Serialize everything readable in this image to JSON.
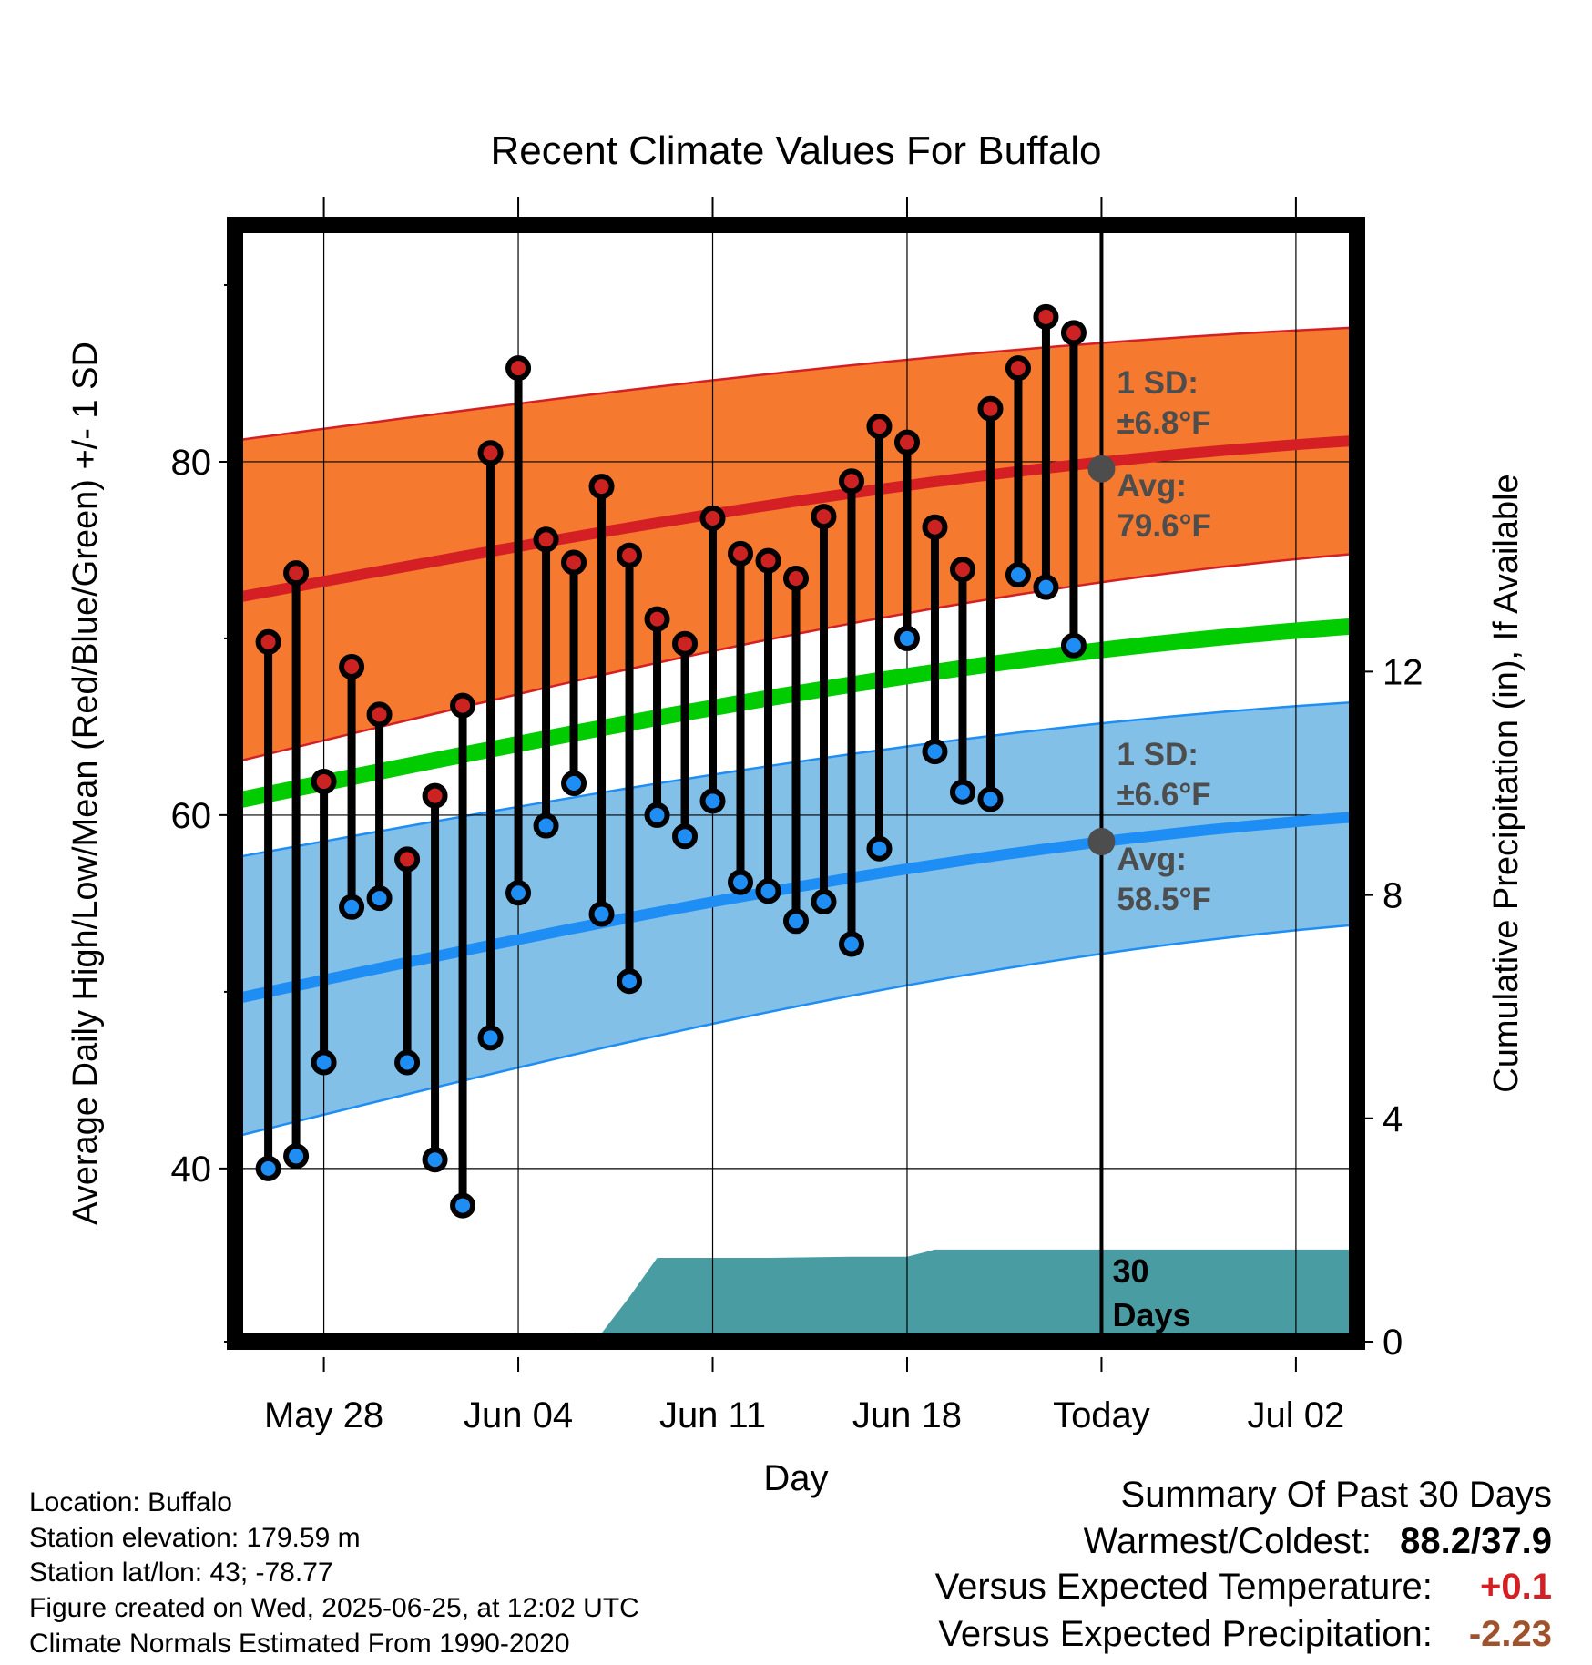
{
  "chart_data": {
    "type": "line",
    "title": "Recent Climate Values For Buffalo",
    "xlabel": "Day",
    "ylabel": "Average Daily High/Low/Mean (Red/Blue/Green) +/- 1 SD",
    "y2label": "Cumulative Precipitation (in), If Available",
    "x_tick_labels": [
      "May 28",
      "Jun 04",
      "Jun 11",
      "Jun 18",
      "Today",
      "Jul 02"
    ],
    "x_tick_days": [
      3,
      10,
      17,
      24,
      31,
      38
    ],
    "xlim": [
      -0.2,
      40.2
    ],
    "ylim": [
      30.2,
      93.4
    ],
    "y_ticks": [
      40,
      60,
      80
    ],
    "y2lim": [
      0,
      20
    ],
    "y2_ticks": [
      0,
      4,
      8,
      12
    ],
    "today_day": 31,
    "today_marker_label": "30\nDays",
    "days": [
      1,
      2,
      3,
      4,
      5,
      6,
      7,
      8,
      9,
      10,
      11,
      12,
      13,
      14,
      15,
      16,
      17,
      18,
      19,
      20,
      21,
      22,
      23,
      24,
      25,
      26,
      27,
      28,
      29,
      30
    ],
    "series": [
      {
        "name": "Daily High",
        "values": [
          69.8,
          73.7,
          61.9,
          68.4,
          65.7,
          57.5,
          61.1,
          66.2,
          80.5,
          85.3,
          75.6,
          74.3,
          78.6,
          74.7,
          71.1,
          69.7,
          76.8,
          74.8,
          74.4,
          73.4,
          76.9,
          78.9,
          82.0,
          81.1,
          76.3,
          73.9,
          83.0,
          85.3,
          88.2,
          87.3
        ]
      },
      {
        "name": "Daily Low",
        "values": [
          40.0,
          40.7,
          46.0,
          54.8,
          55.3,
          46.0,
          40.5,
          37.9,
          47.4,
          55.6,
          59.4,
          61.8,
          54.4,
          50.6,
          60.0,
          58.8,
          60.8,
          56.2,
          55.7,
          54.0,
          55.1,
          52.7,
          58.1,
          70.0,
          63.6,
          61.3,
          60.9,
          73.6,
          72.9,
          69.6
        ]
      }
    ],
    "normals": {
      "high_avg": {
        "start": 72.3,
        "end": 81.2
      },
      "low_avg": {
        "start": 49.6,
        "end": 59.9
      },
      "mean_avg": {
        "start": 60.8,
        "end": 70.7
      },
      "high_sd_band": {
        "upper_start": 81.2,
        "upper_end": 87.6,
        "lower_start": 63.0,
        "lower_end": 74.8
      },
      "low_sd_band": {
        "upper_start": 57.6,
        "upper_end": 66.4,
        "lower_start": 41.8,
        "lower_end": 53.8
      }
    },
    "precip_cumulative": {
      "days": [
        -0.2,
        11.5,
        12.0,
        13.0,
        14.0,
        15.0,
        16.0,
        19.0,
        22.0,
        24.0,
        25.0,
        30.0,
        40.2
      ],
      "values": [
        0.0,
        0.0,
        0.15,
        0.15,
        0.8,
        1.5,
        1.5,
        1.5,
        1.52,
        1.52,
        1.65,
        1.65,
        1.65
      ]
    },
    "annotations": {
      "high_sd": {
        "label": "1 SD:",
        "value": "±6.8°F"
      },
      "high_avg": {
        "label": "Avg:",
        "value": "79.6°F",
        "y": 79.6
      },
      "low_sd": {
        "label": "1 SD:",
        "value": "±6.6°F"
      },
      "low_avg": {
        "label": "Avg:",
        "value": "58.5°F",
        "y": 58.5
      }
    },
    "grid": true,
    "colors": {
      "high_band": "#f57a2f",
      "high_line": "#d42024",
      "low_band": "#82c0e8",
      "low_line": "#1e8ef5",
      "mean_line": "#00cc00",
      "precip": "#4a9ca3",
      "high_dot": "#cc2222",
      "low_dot": "#1e8ef5",
      "annotation_text": "#4d4d4d",
      "positive_anomaly": "#d42024",
      "negative_anomaly": "#a0522d"
    }
  },
  "info": {
    "location": "Location: Buffalo",
    "elevation": "Station elevation: 179.59 m",
    "latlon": "Station lat/lon: 43; -78.77",
    "created": "Figure created on Wed, 2025-06-25, at 12:02 UTC",
    "normals": "Climate Normals Estimated From 1990-2020"
  },
  "summary": {
    "title": "Summary Of Past 30 Days",
    "warm_cold_label": "Warmest/Coldest:",
    "warm_cold_value": "88.2/37.9",
    "temp_label": "Versus Expected Temperature:",
    "temp_value": "+0.1",
    "precip_label": "Versus Expected Precipitation:",
    "precip_value": "-2.23"
  }
}
